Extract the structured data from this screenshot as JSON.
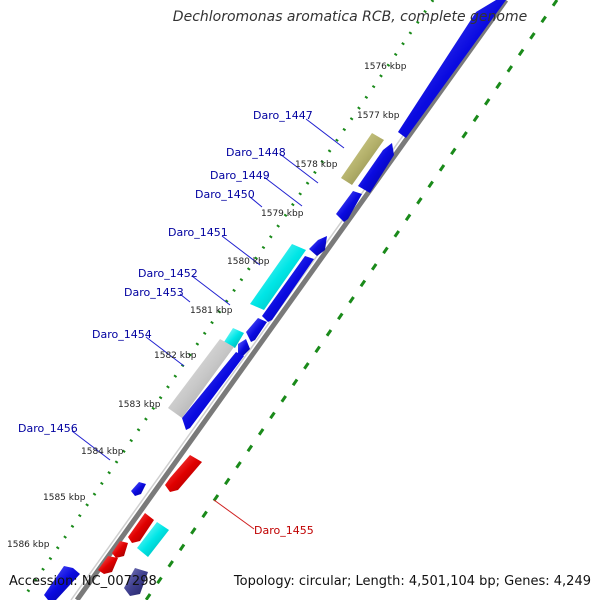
{
  "title": "Dechloromonas aromatica RCB, complete genome",
  "footer": {
    "accession": "Accession: NC_007298",
    "topology": "Topology: circular; Length: 4,501,104 bp; Genes: 4,249"
  },
  "colors": {
    "forward_gene": "#0a0ae0",
    "reverse_gene": "#e00000",
    "cyan_gene": "#00e6e6",
    "olive_gene": "#b3b06a",
    "grey_gene": "#c8c8c8",
    "dark_gene": "#404090",
    "backbone": "#7a7a7a",
    "tick": "#1a8a1a",
    "label_forward": "#0000a0",
    "label_reverse": "#c00000"
  },
  "ticks": [
    {
      "label": "1576 kbp"
    },
    {
      "label": "1577 kbp"
    },
    {
      "label": "1578 kbp"
    },
    {
      "label": "1579 kbp"
    },
    {
      "label": "1580 kbp"
    },
    {
      "label": "1581 kbp"
    },
    {
      "label": "1582 kbp"
    },
    {
      "label": "1583 kbp"
    },
    {
      "label": "1584 kbp"
    },
    {
      "label": "1585 kbp"
    },
    {
      "label": "1586 kbp"
    }
  ],
  "gene_labels": [
    {
      "name": "Daro_1447"
    },
    {
      "name": "Daro_1448"
    },
    {
      "name": "Daro_1449"
    },
    {
      "name": "Daro_1450"
    },
    {
      "name": "Daro_1451"
    },
    {
      "name": "Daro_1452"
    },
    {
      "name": "Daro_1453"
    },
    {
      "name": "Daro_1454"
    },
    {
      "name": "Daro_1456"
    },
    {
      "name": "Daro_1455"
    }
  ]
}
